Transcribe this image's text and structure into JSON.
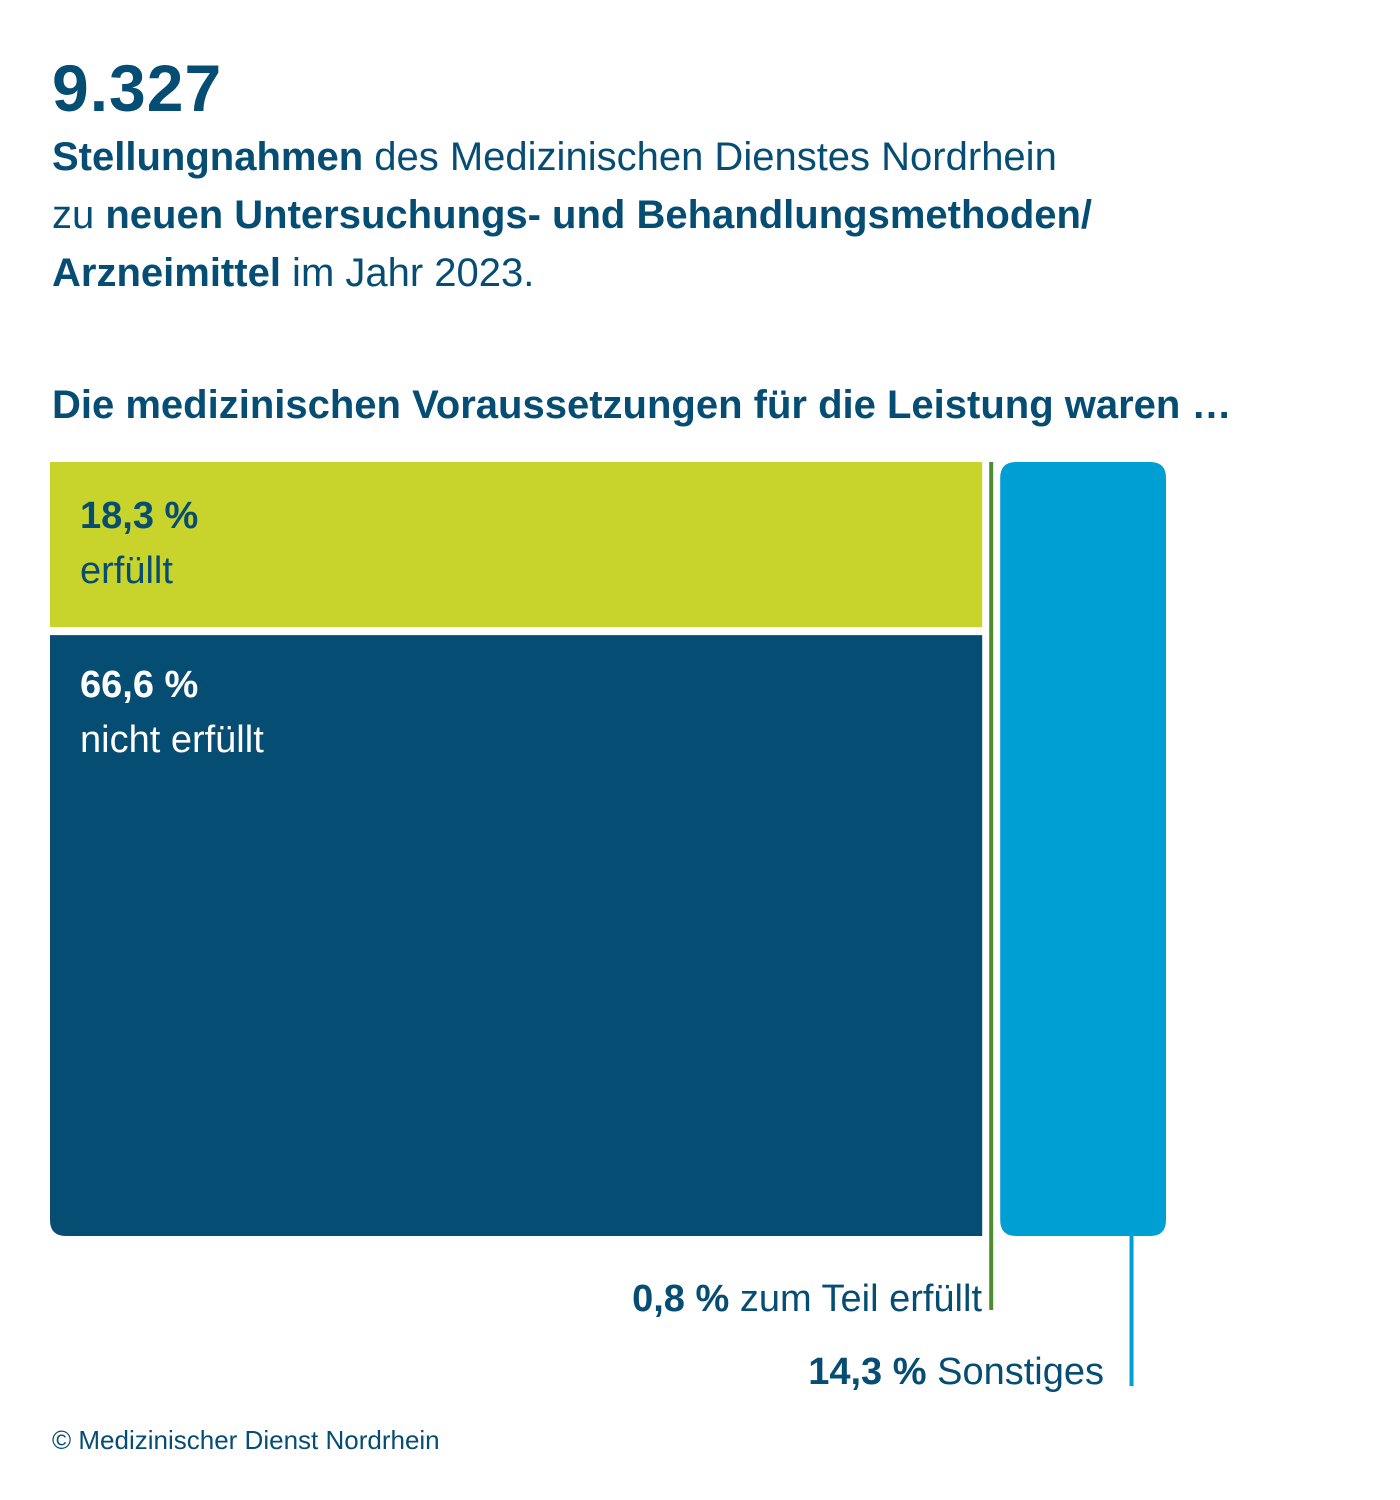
{
  "headline": {
    "number": "9.327"
  },
  "intro": {
    "part1_bold": "Stellungnahmen",
    "part2": " des Medizinischen Dienstes Nordrhein",
    "part3": "zu ",
    "part4_bold": "neuen Untersuchungs- und Behandlungsmethoden/",
    "part5_bold": "Arzneimittel",
    "part6": " im Jahr 2023."
  },
  "chart_heading": "Die medizinischen Voraussetzungen für die Leistung waren …",
  "chart_data": {
    "type": "bar",
    "unit": "%",
    "categories": [
      "erfüllt",
      "nicht erfüllt",
      "zum Teil erfüllt",
      "Sonstiges"
    ],
    "values": [
      18.3,
      66.6,
      0.8,
      14.3
    ],
    "value_labels": [
      "18,3 %",
      "66,6 %",
      "0,8 %",
      "14,3 %"
    ],
    "colors": [
      "#c8d42c",
      "#064d74",
      "#4e8c2f",
      "#009fd3"
    ],
    "title": "Die medizinischen Voraussetzungen für die Leistung waren …",
    "xlabel": "",
    "ylabel": ""
  },
  "copyright": "© Medizinischer Dienst Nordrhein"
}
